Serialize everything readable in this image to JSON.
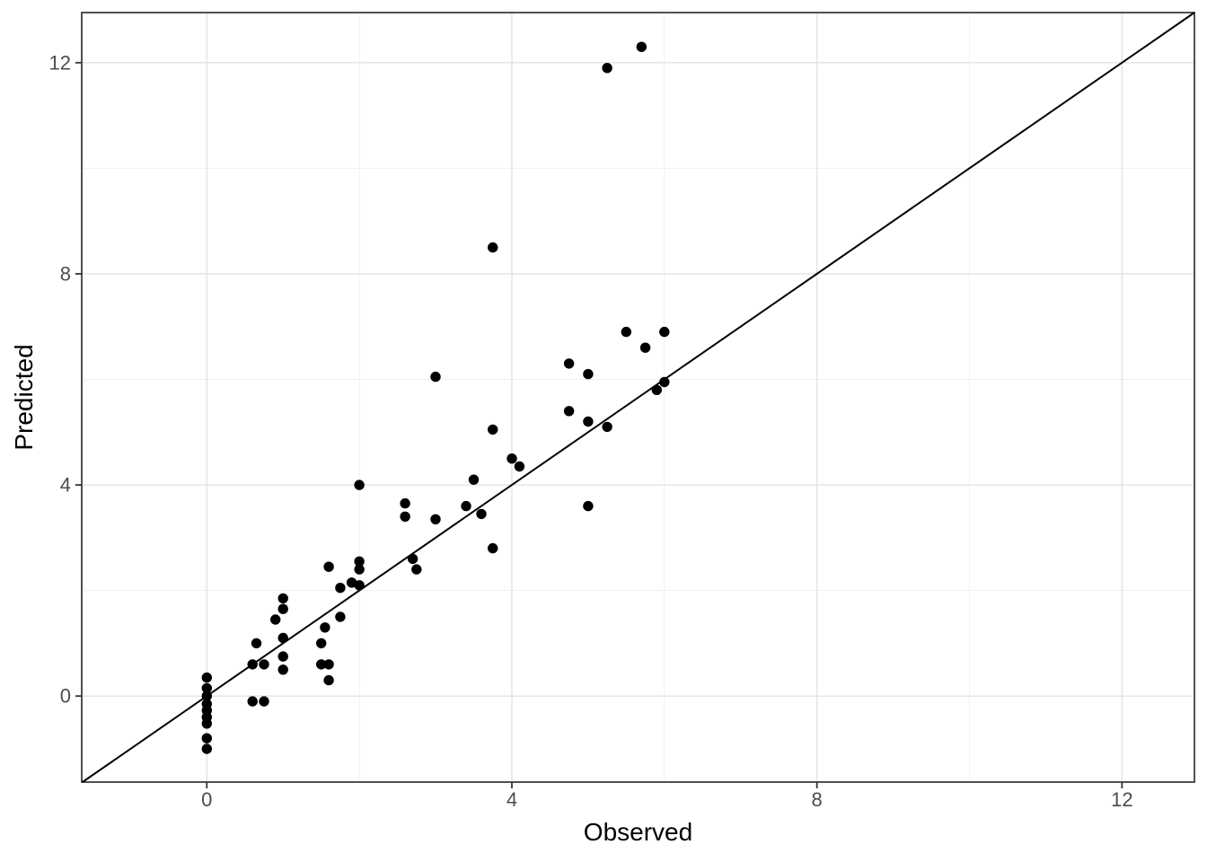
{
  "chart_data": {
    "type": "scatter",
    "title": "",
    "xlabel": "Observed",
    "ylabel": "Predicted",
    "xlim": [
      -1.64,
      12.95
    ],
    "ylim": [
      -1.63,
      12.95
    ],
    "x_major_ticks": [
      0,
      4,
      8,
      12
    ],
    "y_major_ticks": [
      0,
      4,
      8,
      12
    ],
    "x_minor_ticks": [
      2,
      6,
      10
    ],
    "y_minor_ticks": [
      2,
      6,
      10
    ],
    "grid": "major+minor",
    "legend": "none",
    "reference_line": {
      "kind": "identity",
      "equation": "y = x",
      "color": "#000000",
      "width": 2
    },
    "point_style": {
      "color": "#000000",
      "radius": 5.7
    },
    "colors": {
      "background": "#ffffff",
      "panel_border": "#3c3c3c",
      "grid_major": "#e3e3e3",
      "grid_minor": "#f0f0f0",
      "tick_mark": "#333333",
      "tick_label": "#4d4d4d",
      "axis_title": "#000000"
    },
    "points": [
      [
        0,
        0.35
      ],
      [
        0,
        0.15
      ],
      [
        0,
        0.0
      ],
      [
        0,
        -0.15
      ],
      [
        0,
        -0.27
      ],
      [
        0,
        -0.4
      ],
      [
        0,
        -0.52
      ],
      [
        0,
        -0.8
      ],
      [
        0,
        -1.0
      ],
      [
        0.6,
        0.6
      ],
      [
        0.6,
        -0.1
      ],
      [
        0.65,
        1.0
      ],
      [
        0.75,
        0.6
      ],
      [
        0.75,
        -0.1
      ],
      [
        0.9,
        1.45
      ],
      [
        1.0,
        1.85
      ],
      [
        1.0,
        1.65
      ],
      [
        1.0,
        1.1
      ],
      [
        1.0,
        0.75
      ],
      [
        1.0,
        0.5
      ],
      [
        1.5,
        1.0
      ],
      [
        1.5,
        0.6
      ],
      [
        1.55,
        1.3
      ],
      [
        1.6,
        0.6
      ],
      [
        1.6,
        0.3
      ],
      [
        1.6,
        2.45
      ],
      [
        1.75,
        2.05
      ],
      [
        1.75,
        1.5
      ],
      [
        1.9,
        2.15
      ],
      [
        2.0,
        2.55
      ],
      [
        2.0,
        2.4
      ],
      [
        2.0,
        2.1
      ],
      [
        2.0,
        4.0
      ],
      [
        2.6,
        3.65
      ],
      [
        2.6,
        3.4
      ],
      [
        2.7,
        2.6
      ],
      [
        2.75,
        2.4
      ],
      [
        3.0,
        3.35
      ],
      [
        3.0,
        6.05
      ],
      [
        3.4,
        3.6
      ],
      [
        3.5,
        4.1
      ],
      [
        3.6,
        3.45
      ],
      [
        3.75,
        2.8
      ],
      [
        3.75,
        5.05
      ],
      [
        3.75,
        8.5
      ],
      [
        4.0,
        4.5
      ],
      [
        4.1,
        4.35
      ],
      [
        4.75,
        5.4
      ],
      [
        4.75,
        6.3
      ],
      [
        5.0,
        5.2
      ],
      [
        5.0,
        6.1
      ],
      [
        5.0,
        3.6
      ],
      [
        5.25,
        5.1
      ],
      [
        5.25,
        11.9
      ],
      [
        5.5,
        6.9
      ],
      [
        5.7,
        12.3
      ],
      [
        5.75,
        6.6
      ],
      [
        5.9,
        5.8
      ],
      [
        6.0,
        5.95
      ],
      [
        6.0,
        6.9
      ]
    ]
  }
}
